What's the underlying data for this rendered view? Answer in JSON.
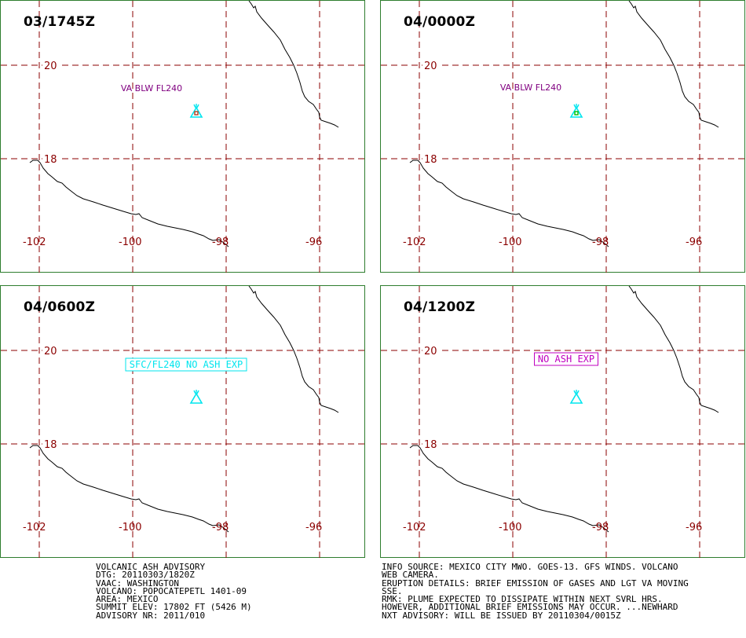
{
  "panels": [
    {
      "time": "03/1745Z",
      "label": {
        "text": "VA BLW FL240",
        "style": "text",
        "color": "#800080"
      },
      "symbol_color": "#00e5ee",
      "symbol_center_color": "#b04020"
    },
    {
      "time": "04/0000Z",
      "label": {
        "text": "VA BLW FL240",
        "style": "text",
        "color": "#800080"
      },
      "symbol_color": "#00e5ee",
      "symbol_center_color": "#00c000"
    },
    {
      "time": "04/0600Z",
      "label": {
        "text": "SFC/FL240 NO ASH EXP",
        "style": "box",
        "color": "#00e5ee"
      },
      "symbol_color": "#00e5ee",
      "symbol_center_color": ""
    },
    {
      "time": "04/1200Z",
      "label": {
        "text": "NO ASH EXP",
        "style": "box",
        "color": "#c000c0"
      },
      "symbol_color": "#00e5ee",
      "symbol_center_color": ""
    }
  ],
  "map": {
    "lat_labels": [
      "20",
      "18"
    ],
    "lon_labels": [
      "-102",
      "-100",
      "-98",
      "-96"
    ],
    "grid_color": "#8b0000",
    "label_color": "#8b0000",
    "coast_color": "#000000",
    "frame_color": "#2e7d2e"
  },
  "advisory_left": [
    "VOLCANIC ASH ADVISORY",
    "DTG: 20110303/1820Z",
    "VAAC: WASHINGTON",
    "VOLCANO: POPOCATEPETL 1401-09",
    "AREA: MEXICO",
    "SUMMIT ELEV: 17802 FT (5426 M)",
    "ADVISORY NR: 2011/010"
  ],
  "advisory_right": [
    "INFO SOURCE: MEXICO CITY MWO. GOES-13. GFS WINDS. VOLCANO",
    "WEB CAMERA.",
    "ERUPTION DETAILS: BRIEF EMISSION OF GASES AND LGT VA MOVING",
    "SSE.",
    "RMK: PLUME EXPECTED TO DISSIPATE WITHIN NEXT SVRL HRS.",
    "HOWEVER, ADDITIONAL BRIEF EMISSIONS MAY OCCUR. ...NEWHARD",
    "NXT ADVISORY: WILL BE ISSUED BY 20110304/0015Z"
  ]
}
